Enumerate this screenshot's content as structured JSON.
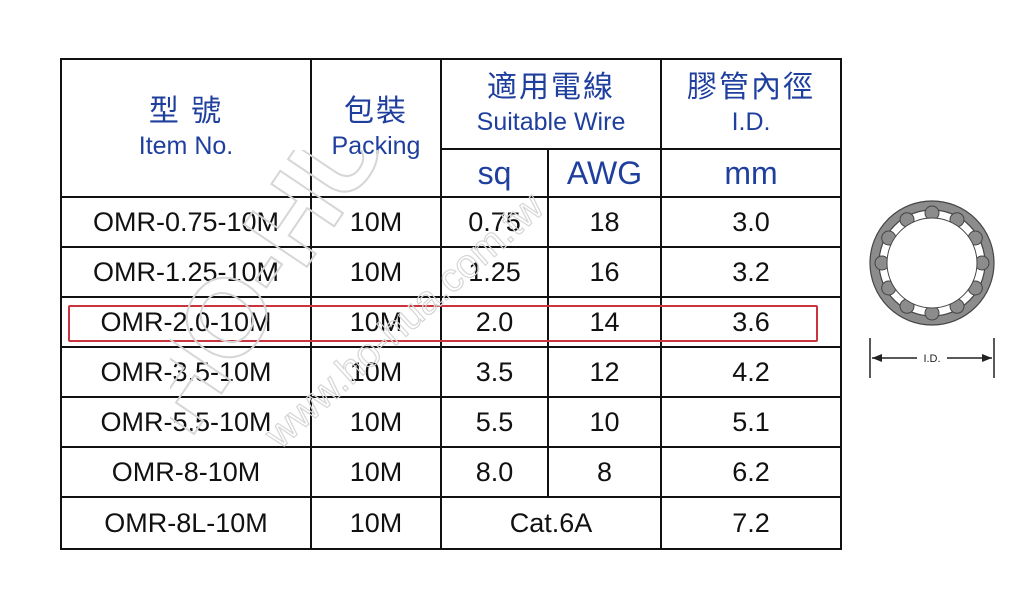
{
  "table": {
    "headers": {
      "item_zh": "型 號",
      "item_en": "Item No.",
      "packing_zh": "包裝",
      "packing_en": "Packing",
      "wire_zh": "適用電線",
      "wire_en": "Suitable Wire",
      "id_zh": "膠管內徑",
      "id_en": "I.D.",
      "sq": "sq",
      "awg": "AWG",
      "mm": "mm"
    },
    "rows": [
      {
        "item": "OMR-0.75-10M",
        "packing": "10M",
        "sq": "0.75",
        "awg": "18",
        "id": "3.0"
      },
      {
        "item": "OMR-1.25-10M",
        "packing": "10M",
        "sq": "1.25",
        "awg": "16",
        "id": "3.2"
      },
      {
        "item": "OMR-2.0-10M",
        "packing": "10M",
        "sq": "2.0",
        "awg": "14",
        "id": "3.6"
      },
      {
        "item": "OMR-3.5-10M",
        "packing": "10M",
        "sq": "3.5",
        "awg": "12",
        "id": "4.2"
      },
      {
        "item": "OMR-5.5-10M",
        "packing": "10M",
        "sq": "5.5",
        "awg": "10",
        "id": "5.1"
      },
      {
        "item": "OMR-8-10M",
        "packing": "10M",
        "sq": "8.0",
        "awg": "8",
        "id": "6.2"
      },
      {
        "item": "OMR-8L-10M",
        "packing": "10M",
        "wire": "Cat.6A",
        "id": "7.2"
      }
    ],
    "highlighted_row": "OMR-2.0-10M"
  },
  "diagram": {
    "label": "I.D."
  },
  "watermark": {
    "brand": "HO-HUA",
    "url": "www.ho-hua.com.tw"
  },
  "colors": {
    "header_text": "#1f3f9e",
    "highlight": "#c9343f",
    "tube_fill": "#8c8c8c"
  }
}
